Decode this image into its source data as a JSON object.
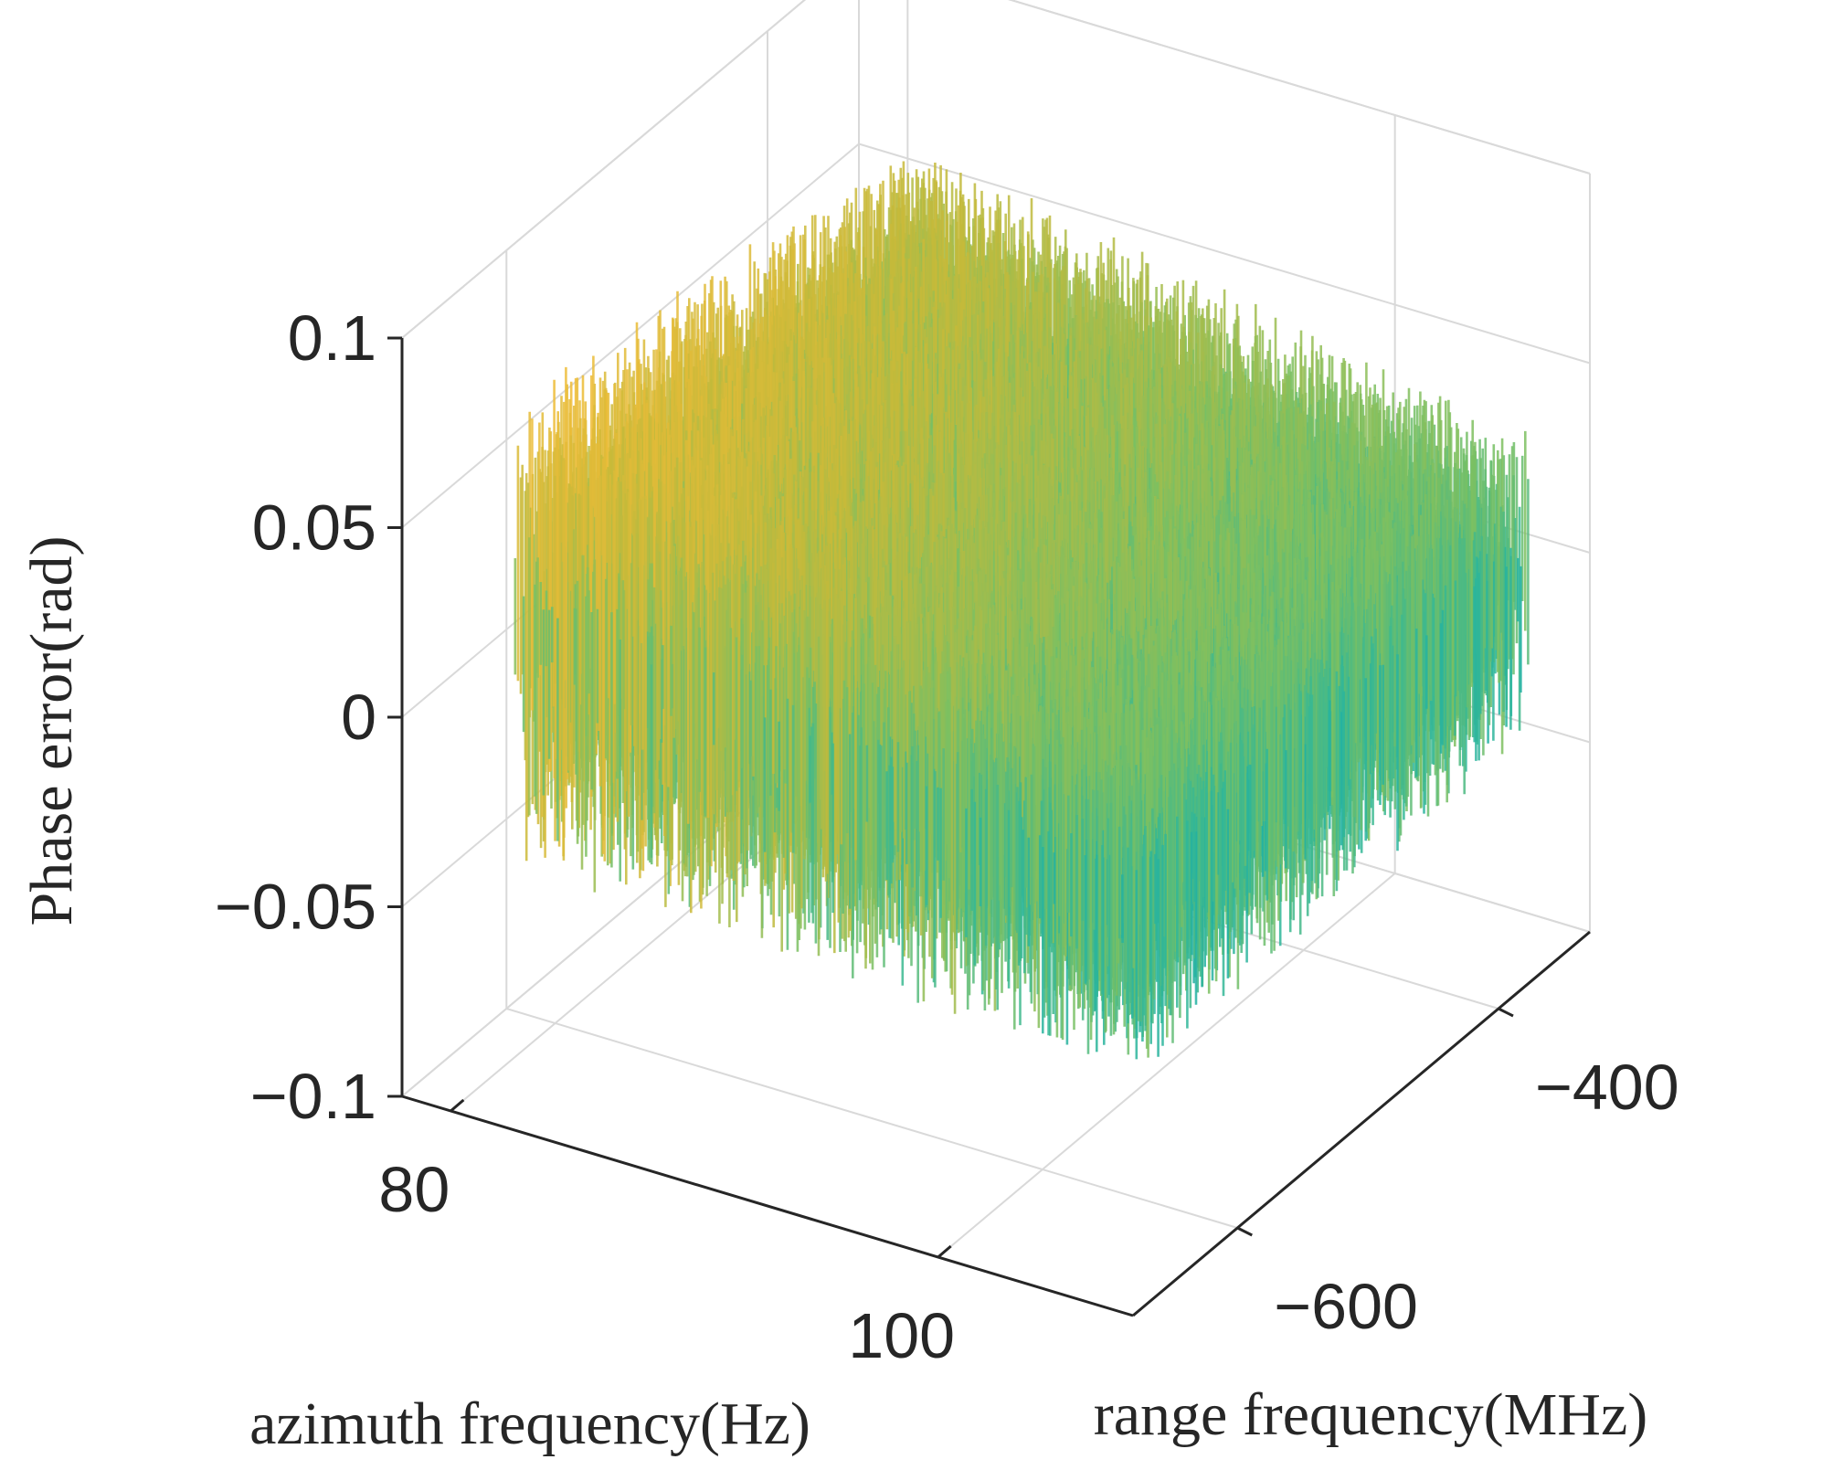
{
  "chart_data": {
    "type": "surface",
    "title": "",
    "xlabel": "azimuth frequency(Hz)",
    "ylabel": "range frequency(MHz)",
    "zlabel": "Phase error(rad)",
    "x_ticks": [
      {
        "value": 80,
        "label": "80"
      },
      {
        "value": 100,
        "label": "100"
      }
    ],
    "y_ticks": [
      {
        "value": -600,
        "label": "−600"
      },
      {
        "value": -400,
        "label": "−400"
      }
    ],
    "z_ticks": [
      {
        "value": 0.1,
        "label": "0.1"
      },
      {
        "value": 0.05,
        "label": "0.05"
      },
      {
        "value": 0,
        "label": "0"
      },
      {
        "value": -0.05,
        "label": "−0.05"
      },
      {
        "value": -0.1,
        "label": "−0.1"
      }
    ],
    "xlim": [
      78,
      108
    ],
    "ylim": [
      -680,
      -330
    ],
    "zlim": [
      -0.1,
      0.1
    ],
    "grid": true,
    "colormap": "parula",
    "surface_summary": {
      "description": "noisy phase error surface, larger near low azimuth frequency",
      "z_min_approx": -0.1,
      "z_max_approx": 0.1
    }
  }
}
